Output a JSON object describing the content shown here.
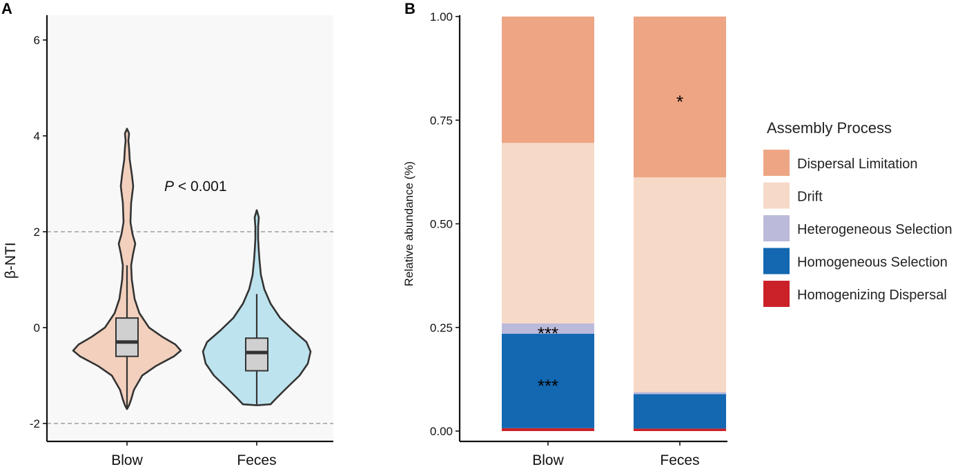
{
  "chart_data": [
    {
      "panel": "A",
      "type": "violin",
      "ylabel": "β-NTI",
      "ylim": [
        -2.2,
        6.6
      ],
      "yticks": [
        "-2",
        "0",
        "2",
        "4",
        "6"
      ],
      "ytick_values": [
        -2,
        0,
        2,
        4,
        6
      ],
      "reference_lines": [
        -2,
        2
      ],
      "annotation": {
        "p_italic": "P",
        "text": " < 0.001"
      },
      "categories": [
        "Blow",
        "Feces"
      ],
      "series": [
        {
          "name": "Blow",
          "color": "#f2d0bd",
          "box": {
            "min": -1.7,
            "q1": -0.6,
            "median": -0.3,
            "q3": 0.2,
            "max": 1.3
          },
          "range": [
            -1.7,
            4.15
          ]
        },
        {
          "name": "Feces",
          "color": "#bde3ee",
          "box": {
            "min": -1.6,
            "q1": -0.9,
            "median": -0.52,
            "q3": -0.22,
            "max": 0.7
          },
          "range": [
            -1.62,
            2.45
          ]
        }
      ]
    },
    {
      "panel": "B",
      "type": "stacked_bar",
      "ylabel": "Relative abundance (%)",
      "ylim": [
        0,
        1
      ],
      "yticks": [
        "0.00",
        "0.25",
        "0.50",
        "0.75",
        "1.00"
      ],
      "ytick_values": [
        0,
        0.25,
        0.5,
        0.75,
        1.0
      ],
      "categories": [
        "Blow",
        "Feces"
      ],
      "legend_title": "Assembly Process",
      "series": [
        {
          "name": "Dispersal Limitation",
          "color": "#eea584",
          "values": [
            0.305,
            0.388
          ]
        },
        {
          "name": "Drift",
          "color": "#f7d9c7",
          "values": [
            0.435,
            0.518
          ]
        },
        {
          "name": "Heterogeneous Selection",
          "color": "#bcbadb",
          "values": [
            0.025,
            0.005
          ]
        },
        {
          "name": "Homogeneous Selection",
          "color": "#1368b1",
          "values": [
            0.228,
            0.083
          ]
        },
        {
          "name": "Homogenizing Dispersal",
          "color": "#cb2129",
          "values": [
            0.007,
            0.006
          ]
        }
      ],
      "significance": [
        {
          "category": "Blow",
          "series": "Heterogeneous Selection",
          "text": "***"
        },
        {
          "category": "Blow",
          "series": "Homogeneous Selection",
          "text": "***"
        },
        {
          "category": "Feces",
          "series": "Dispersal Limitation",
          "text": "*"
        }
      ]
    }
  ]
}
